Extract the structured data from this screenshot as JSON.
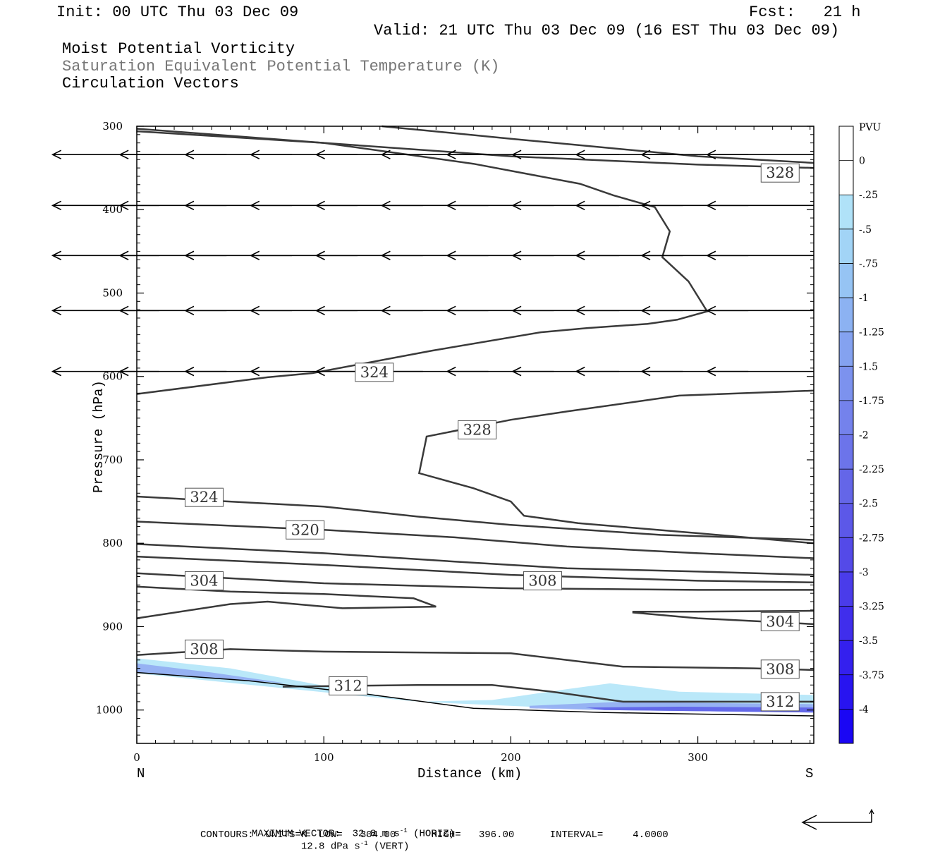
{
  "header": {
    "init": "Init: 00 UTC Thu 03 Dec 09",
    "fcst": "Fcst:   21 h",
    "valid": "Valid: 21 UTC Thu 03 Dec 09 (16 EST Thu 03 Dec 09)",
    "field1": "Moist Potential Vorticity",
    "field2": "Saturation Equivalent Potential Temperature (K)",
    "field3": "Circulation Vectors"
  },
  "footer": {
    "max_vector_prefix": "MAXIMUM VECTOR:  32.8 m s",
    "horiz_suffix": " (HORIZ)",
    "vert_value": "12.8 dPa s",
    "vert_suffix": " (VERT)",
    "superscript": "-1",
    "contours": "CONTOURS:  UNITS=K  LOW=   304.00      HIGH=   396.00      INTERVAL=     4.0000"
  },
  "colors": {
    "contour": "#3a3a3a",
    "vector": "#000000",
    "shade_light": "#aee4f8",
    "shade_mid": "#8fa8f2",
    "shade_dark": "#5a5ae6"
  },
  "chart_data": {
    "type": "cross-section",
    "xlabel": "Distance (km)",
    "ylabel": "Pressure (hPa)",
    "x_end_left": "N",
    "x_end_right": "S",
    "xlim": [
      0,
      362
    ],
    "ylim": [
      1040,
      300
    ],
    "x_ticks": [
      0,
      100,
      200,
      300
    ],
    "y_ticks": [
      300,
      400,
      500,
      600,
      700,
      800,
      900,
      1000
    ],
    "colorbar": {
      "unit": "PVU",
      "labels": [
        "0",
        "-.25",
        "-.5",
        "-.75",
        "-1",
        "-1.25",
        "-1.5",
        "-1.75",
        "-2",
        "-2.25",
        "-2.5",
        "-2.75",
        "-3",
        "-3.25",
        "-3.5",
        "-3.75",
        "-4"
      ],
      "colors": [
        "#ffffff",
        "#ffffff",
        "#b0e2f8",
        "#a2d4f6",
        "#96c4f4",
        "#8cb2f2",
        "#84a2f0",
        "#7c92ee",
        "#7482ec",
        "#6c74ea",
        "#6466e8",
        "#5c58e8",
        "#544ae8",
        "#4a3cea",
        "#402eec",
        "#3420ee",
        "#2814f0",
        "#1a06f4"
      ]
    },
    "contour_lines": [
      {
        "label": "328",
        "label_at": [
          344,
          356
        ],
        "points": [
          [
            0,
            306
          ],
          [
            100,
            320
          ],
          [
            200,
            336
          ],
          [
            300,
            346
          ],
          [
            362,
            350
          ]
        ]
      },
      {
        "label": "",
        "points": [
          [
            131,
            300
          ],
          [
            200,
            315
          ],
          [
            300,
            336
          ],
          [
            362,
            344
          ]
        ]
      },
      {
        "label": "",
        "points": [
          [
            0,
            303
          ],
          [
            100,
            320
          ],
          [
            180,
            345
          ],
          [
            237,
            369
          ],
          [
            255,
            383
          ],
          [
            277,
            397
          ],
          [
            285,
            426
          ],
          [
            281,
            457
          ],
          [
            295,
            486
          ],
          [
            305,
            522
          ],
          [
            289,
            532
          ],
          [
            273,
            537
          ],
          [
            241,
            542
          ],
          [
            216,
            547
          ],
          [
            158,
            569
          ],
          [
            94,
            596
          ],
          [
            70,
            601
          ],
          [
            0,
            621
          ]
        ]
      },
      {
        "label": "324",
        "label_at": [
          127,
          595
        ]
      },
      {
        "label": "328",
        "label_at": [
          182,
          664
        ],
        "points": [
          [
            362,
            617
          ],
          [
            290,
            623
          ],
          [
            230,
            642
          ],
          [
            200,
            652
          ],
          [
            155,
            672
          ],
          [
            151,
            716
          ],
          [
            180,
            734
          ],
          [
            200,
            750
          ],
          [
            207,
            767
          ],
          [
            236,
            776
          ],
          [
            300,
            788
          ],
          [
            362,
            800
          ]
        ]
      },
      {
        "label": "324",
        "label_at": [
          36,
          745
        ],
        "points": [
          [
            0,
            744
          ],
          [
            100,
            756
          ],
          [
            150,
            768
          ],
          [
            200,
            778
          ],
          [
            280,
            790
          ],
          [
            362,
            796
          ]
        ]
      },
      {
        "label": "320",
        "label_at": [
          90,
          784
        ],
        "points": [
          [
            0,
            774
          ],
          [
            100,
            784
          ],
          [
            170,
            793
          ],
          [
            230,
            804
          ],
          [
            300,
            812
          ],
          [
            362,
            818
          ]
        ]
      },
      {
        "label": "",
        "points": [
          [
            0,
            801
          ],
          [
            100,
            812
          ],
          [
            170,
            822
          ],
          [
            230,
            830
          ],
          [
            300,
            834
          ],
          [
            362,
            838
          ]
        ]
      },
      {
        "label": "",
        "points": [
          [
            0,
            816
          ],
          [
            100,
            826
          ],
          [
            200,
            838
          ],
          [
            300,
            845
          ],
          [
            362,
            847
          ]
        ]
      },
      {
        "label": "308",
        "label_at": [
          217,
          845
        ],
        "points": [
          [
            0,
            836
          ],
          [
            100,
            848
          ],
          [
            200,
            854
          ],
          [
            300,
            856
          ],
          [
            362,
            856
          ]
        ]
      },
      {
        "label": "304",
        "label_at": [
          36,
          845
        ],
        "points": [
          [
            0,
            890
          ],
          [
            50,
            873
          ],
          [
            70,
            870
          ],
          [
            110,
            878
          ],
          [
            160,
            876
          ],
          [
            148,
            866
          ],
          [
            100,
            861
          ],
          [
            50,
            858
          ],
          [
            0,
            852
          ]
        ]
      },
      {
        "label": "304",
        "label_at": [
          344,
          894
        ],
        "points": [
          [
            265,
            883
          ],
          [
            300,
            890
          ],
          [
            362,
            897
          ]
        ]
      },
      {
        "label": "",
        "points": [
          [
            362,
            881
          ],
          [
            300,
            882
          ],
          [
            265,
            882
          ]
        ]
      },
      {
        "label": "308",
        "label_at": [
          36,
          927
        ],
        "points": [
          [
            0,
            934
          ],
          [
            50,
            927
          ],
          [
            100,
            930
          ],
          [
            200,
            932
          ],
          [
            260,
            948
          ],
          [
            330,
            950
          ],
          [
            362,
            952
          ]
        ]
      },
      {
        "label": "308",
        "label_at": [
          344,
          951
        ]
      },
      {
        "label": "312",
        "label_at": [
          113,
          971
        ],
        "points": [
          [
            78,
            972
          ],
          [
            150,
            970
          ],
          [
            190,
            970
          ],
          [
            222,
            978
          ],
          [
            260,
            990
          ],
          [
            362,
            990
          ]
        ]
      },
      {
        "label": "312",
        "label_at": [
          344,
          990
        ]
      }
    ],
    "terrain": [
      [
        0,
        955
      ],
      [
        60,
        965
      ],
      [
        120,
        980
      ],
      [
        180,
        998
      ],
      [
        250,
        1003
      ],
      [
        362,
        1007
      ]
    ],
    "pv_shading": [
      {
        "level": "-0.25",
        "points": [
          [
            0,
            938
          ],
          [
            50,
            950
          ],
          [
            110,
            975
          ],
          [
            150,
            990
          ],
          [
            190,
            988
          ],
          [
            230,
            975
          ],
          [
            253,
            968
          ],
          [
            290,
            978
          ],
          [
            362,
            982
          ],
          [
            362,
            1003
          ],
          [
            250,
            1000
          ],
          [
            150,
            990
          ],
          [
            0,
            956
          ]
        ]
      },
      {
        "level": "-1.5",
        "points": [
          [
            0,
            944
          ],
          [
            40,
            955
          ],
          [
            80,
            968
          ],
          [
            0,
            955
          ]
        ]
      },
      {
        "level": "-2",
        "points": [
          [
            210,
            995
          ],
          [
            260,
            990
          ],
          [
            320,
            992
          ],
          [
            362,
            993
          ],
          [
            362,
            1003
          ],
          [
            250,
            1000
          ],
          [
            210,
            998
          ]
        ]
      },
      {
        "level": "-3",
        "points": [
          [
            240,
            997
          ],
          [
            290,
            996
          ],
          [
            362,
            997
          ],
          [
            362,
            1003
          ],
          [
            250,
            1000
          ]
        ]
      }
    ],
    "vectors": [
      {
        "p": 334,
        "items": [
          [
            362,
            -57
          ],
          [
            327,
            -57
          ],
          [
            292,
            -57
          ],
          [
            258,
            -57
          ],
          [
            223,
            -57
          ],
          [
            188,
            -57
          ],
          [
            153,
            -57
          ],
          [
            118,
            -57
          ],
          [
            83,
            -57
          ],
          [
            48,
            -57
          ],
          [
            12,
            -57
          ]
        ]
      },
      {
        "p": 395,
        "items": [
          [
            362,
            -57
          ],
          [
            327,
            -57
          ],
          [
            292,
            -57
          ],
          [
            258,
            -57
          ],
          [
            223,
            -57
          ],
          [
            188,
            -57
          ],
          [
            153,
            -57
          ],
          [
            118,
            -57
          ],
          [
            83,
            -57
          ],
          [
            48,
            -57
          ],
          [
            12,
            -57
          ]
        ]
      },
      {
        "p": 455,
        "items": [
          [
            362,
            -57
          ],
          [
            327,
            -57
          ],
          [
            292,
            -57
          ],
          [
            258,
            -57
          ],
          [
            223,
            -57
          ],
          [
            188,
            -57
          ],
          [
            153,
            -57
          ],
          [
            118,
            -57
          ],
          [
            83,
            -57
          ],
          [
            48,
            -57
          ],
          [
            12,
            -57
          ]
        ]
      },
      {
        "p": 521,
        "items": [
          [
            362,
            -57
          ],
          [
            327,
            -57
          ],
          [
            292,
            -57
          ],
          [
            258,
            -57
          ],
          [
            223,
            -57
          ],
          [
            188,
            -57
          ],
          [
            153,
            -57
          ],
          [
            118,
            -57
          ],
          [
            83,
            -57
          ],
          [
            48,
            -57
          ],
          [
            12,
            -57
          ]
        ]
      },
      {
        "p": 594,
        "items": [
          [
            362,
            -57
          ],
          [
            327,
            -57
          ],
          [
            292,
            -57
          ],
          [
            258,
            -57
          ],
          [
            223,
            -57
          ],
          [
            188,
            -57
          ],
          [
            153,
            -57
          ],
          [
            118,
            -57
          ],
          [
            83,
            -57
          ],
          [
            48,
            -57
          ],
          [
            12,
            -57
          ]
        ]
      }
    ]
  }
}
